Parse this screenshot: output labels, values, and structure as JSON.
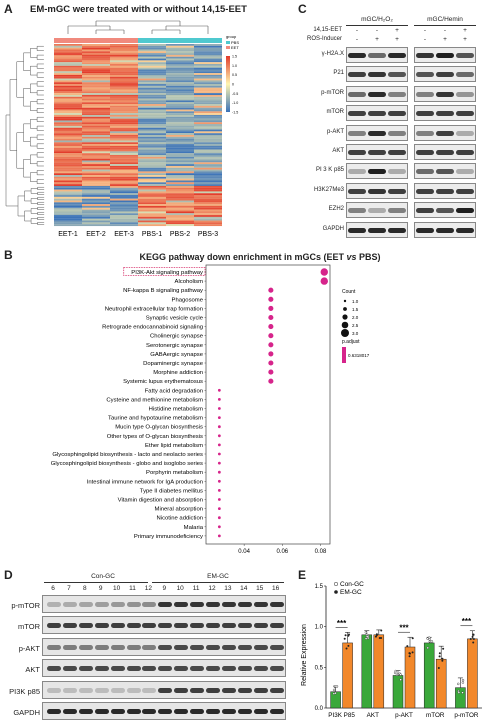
{
  "panel_a": {
    "letter": "A",
    "title": "EM-mGC were treated with or without 14,15-EET",
    "columns": [
      "EET-1",
      "EET-2",
      "EET-3",
      "PBS-1",
      "PBS-2",
      "PBS-3"
    ],
    "legend_group_title": "group",
    "legend_groups": [
      "PBS",
      "EET"
    ],
    "legend_ticks": [
      "1.5",
      "1.0",
      "0.5",
      "0",
      "-0.5",
      "-1.0",
      "-1.5"
    ],
    "colors": {
      "eet": "#f08a7e",
      "pbs": "#4fc9cf",
      "high": "#e23a2a",
      "mid": "#fff6b0",
      "low": "#3a72b8"
    }
  },
  "panel_c": {
    "letter": "C",
    "group1": "mGC/H₂O₂",
    "group2": "mGC/Hemin",
    "row1_label": "14,15-EET",
    "row2_label": "ROS-Inducer",
    "treat1": [
      "-",
      "-",
      "+"
    ],
    "treat2": [
      "-",
      "+",
      "+"
    ],
    "bands": [
      "γ-H2A.X",
      "P21",
      "p-mTOR",
      "mTOR",
      "p-AKT",
      "AKT",
      "PI 3 K p85",
      "H3K27Me3",
      "EZH2",
      "GAPDH"
    ]
  },
  "panel_b": {
    "letter": "B",
    "title_pre": "KEGG pathway down enrichment in mGCs (EET ",
    "title_vs": "vs",
    "title_post": " PBS)",
    "highlight_color": "#d6336c"
  },
  "chart_data": [
    {
      "type": "scatter",
      "title": "KEGG pathway down enrichment in mGCs (EET vs PBS)",
      "xlabel": "",
      "ylabel": "",
      "xlim": [
        0.02,
        0.085
      ],
      "xticks": [
        0.04,
        0.06,
        0.08
      ],
      "x_tick_labels": [
        "0.04",
        "0.06",
        "0.08"
      ],
      "categories": [
        "PI3K-Akt signaling pathway",
        "Alcoholism",
        "NF-kappa B signaling pathway",
        "Phagosome",
        "Neutrophil extracellular trap formation",
        "Synaptic vesicle cycle",
        "Retrograde endocannabinoid signaling",
        "Cholinergic synapse",
        "Serotonergic synapse",
        "GABAergic synapse",
        "Dopaminergic synapse",
        "Morphine addiction",
        "Systemic lupus erythematosus",
        "Fatty acid degradation",
        "Cysteine and methionine metabolism",
        "Histidine metabolism",
        "Taurine and hypotaurine metabolism",
        "Mucin type O-glycan biosynthesis",
        "Other types of O-glycan biosynthesis",
        "Ether lipid metabolism",
        "Glycosphingolipid biosynthesis - lacto and neolacto series",
        "Glycosphingolipid biosynthesis - globo and isoglobo series",
        "Porphyrin metabolism",
        "Intestinal immune network for IgA production",
        "Type II diabetes mellitus",
        "Vitamin digestion and absorption",
        "Mineral absorption",
        "Nicotine addiction",
        "Malaria",
        "Primary immunodeficiency"
      ],
      "x": [
        0.082,
        0.082,
        0.054,
        0.054,
        0.054,
        0.054,
        0.054,
        0.054,
        0.054,
        0.054,
        0.054,
        0.054,
        0.054,
        0.027,
        0.027,
        0.027,
        0.027,
        0.027,
        0.027,
        0.027,
        0.027,
        0.027,
        0.027,
        0.027,
        0.027,
        0.027,
        0.027,
        0.027,
        0.027,
        0.027
      ],
      "count": [
        2,
        2,
        1.5,
        1.5,
        1.5,
        1.5,
        1.5,
        1.5,
        1.5,
        1.5,
        1.5,
        1.5,
        1.5,
        1,
        1,
        1,
        1,
        1,
        1,
        1,
        1,
        1,
        1,
        1,
        1,
        1,
        1,
        1,
        1,
        1
      ],
      "size_legend_title": "Count",
      "size_legend_labels": [
        "1.0",
        "1.5",
        "2.0",
        "2.5",
        "3.0"
      ],
      "color_legend_title": "p.adjust",
      "color_legend_label": "0.6318017",
      "color": "#d6248b",
      "highlighted": "PI3K-Akt signaling pathway"
    },
    {
      "type": "bar",
      "title": "",
      "xlabel": "",
      "ylabel": "Relative Expression",
      "ylim": [
        0,
        1.5
      ],
      "yticks": [
        0.0,
        0.5,
        1.0,
        1.5
      ],
      "y_tick_labels": [
        "0.0",
        "0.5",
        "1.0",
        "1.5"
      ],
      "categories": [
        "PI3K P85",
        "AKT",
        "p-AKT",
        "mTOR",
        "p-mTOR"
      ],
      "series": [
        {
          "name": "Con-GC",
          "values": [
            0.2,
            0.9,
            0.4,
            0.8,
            0.25
          ],
          "errors": [
            0.07,
            0.05,
            0.06,
            0.07,
            0.12
          ],
          "color": "#3aa83a"
        },
        {
          "name": "EM-GC",
          "values": [
            0.8,
            0.9,
            0.75,
            0.6,
            0.85
          ],
          "errors": [
            0.13,
            0.06,
            0.12,
            0.16,
            0.1
          ],
          "color": "#f2882b"
        }
      ],
      "significance": [
        "***",
        "",
        "***",
        "",
        "***"
      ],
      "legend_placement": "top-left"
    }
  ],
  "panel_d": {
    "letter": "D",
    "group1": "Con-GC",
    "group2": "EM-GC",
    "lanes1": [
      "6",
      "7",
      "8",
      "9",
      "10",
      "11",
      "12"
    ],
    "lanes2": [
      "9",
      "10",
      "11",
      "12",
      "13",
      "14",
      "15",
      "16"
    ],
    "bands": [
      "p-mTOR",
      "mTOR",
      "p-AKT",
      "AKT",
      "PI3K p85",
      "GAPDH"
    ]
  },
  "panel_e": {
    "letter": "E",
    "legend_con": "Con-GC",
    "legend_em": "EM-GC"
  }
}
